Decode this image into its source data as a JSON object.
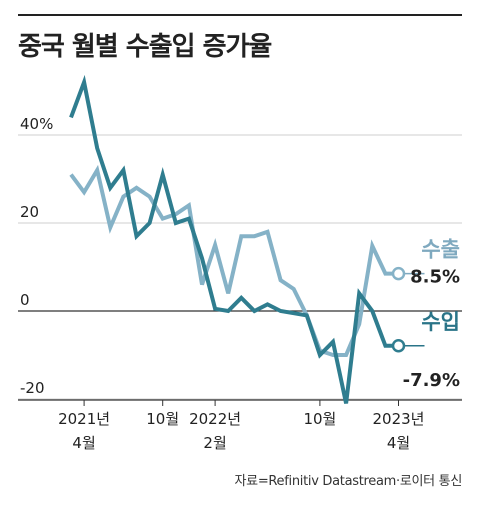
{
  "title": "중국 월별 수출입 증가율",
  "source": "자료=Refinitiv Datastream·로이터 통신",
  "colors": {
    "export": "#85b2c7",
    "import": "#2f7d8f",
    "label_export": "#7fa9bf",
    "label_import": "#2a7488",
    "grid": "#cfcfcf",
    "zero": "#333333",
    "text": "#222222"
  },
  "chart_data": {
    "type": "line",
    "title": "중국 월별 수출입 증가율",
    "ylim": [
      -20,
      55
    ],
    "yticks": [
      {
        "value": 40,
        "label": "40%"
      },
      {
        "value": 20,
        "label": "20"
      },
      {
        "value": 0,
        "label": "0"
      },
      {
        "value": -20,
        "label": "-20"
      }
    ],
    "grid": true,
    "x_start": "2021-03",
    "x_ticks": [
      {
        "month": "2021-04",
        "line1": "2021년",
        "line2": "4월"
      },
      {
        "month": "2021-10",
        "line1": "10월",
        "line2": ""
      },
      {
        "month": "2022-02",
        "line1": "2022년",
        "line2": "2월"
      },
      {
        "month": "2022-10",
        "line1": "10월",
        "line2": ""
      },
      {
        "month": "2023-04",
        "line1": "2023년",
        "line2": "4월"
      }
    ],
    "series": [
      {
        "name": "수출",
        "end_label": "8.5%",
        "x": [
          "2021-03",
          "2021-04",
          "2021-05",
          "2021-06",
          "2021-07",
          "2021-08",
          "2021-09",
          "2021-10",
          "2021-11",
          "2021-12",
          "2022-01",
          "2022-02",
          "2022-03",
          "2022-04",
          "2022-05",
          "2022-06",
          "2022-07",
          "2022-08",
          "2022-09",
          "2022-10",
          "2022-11",
          "2022-12",
          "2023-01",
          "2023-02",
          "2023-03",
          "2023-04"
        ],
        "values": [
          31,
          27,
          32,
          19,
          26,
          28,
          26,
          21,
          22,
          24,
          6,
          15,
          4,
          17,
          17,
          18,
          7,
          5,
          -1,
          -9,
          -10,
          -10,
          -3,
          14.8,
          8.5,
          8.5
        ]
      },
      {
        "name": "수입",
        "end_label": "-7.9%",
        "x": [
          "2021-03",
          "2021-04",
          "2021-05",
          "2021-06",
          "2021-07",
          "2021-08",
          "2021-09",
          "2021-10",
          "2021-11",
          "2021-12",
          "2022-01",
          "2022-02",
          "2022-03",
          "2022-04",
          "2022-05",
          "2022-06",
          "2022-07",
          "2022-08",
          "2022-09",
          "2022-10",
          "2022-11",
          "2022-12",
          "2023-01",
          "2023-02",
          "2023-03",
          "2023-04"
        ],
        "values": [
          44,
          52,
          37,
          28,
          32,
          17,
          20,
          31,
          20,
          21,
          12,
          0.5,
          0,
          3,
          0,
          1.5,
          0,
          -0.5,
          -1,
          -10,
          -7,
          -21,
          4,
          0,
          -7.9,
          -7.9
        ]
      }
    ]
  }
}
